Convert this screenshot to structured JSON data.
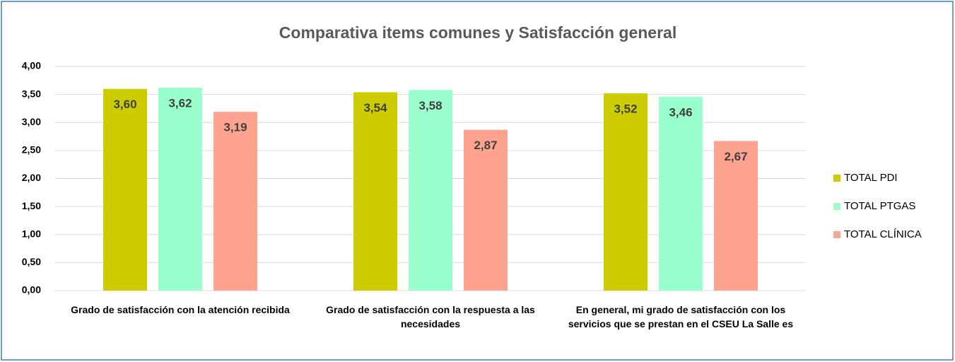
{
  "chart_data": {
    "type": "bar",
    "title": "Comparativa items comunes y Satisfacción general",
    "categories": [
      "Grado de satisfacción con la atención recibida",
      "Grado de satisfacción con la respuesta a las necesidades",
      "En general, mi grado de satisfacción con los servicios que se prestan en el CSEU La Salle es"
    ],
    "series": [
      {
        "name": "TOTAL PDI",
        "color": "#cccc00",
        "values": [
          3.6,
          3.54,
          3.52
        ],
        "value_labels": [
          "3,60",
          "3,54",
          "3,52"
        ]
      },
      {
        "name": "TOTAL PTGAS",
        "color": "#99ffcc",
        "values": [
          3.62,
          3.58,
          3.46
        ],
        "value_labels": [
          "3,62",
          "3,58",
          "3,46"
        ]
      },
      {
        "name": "TOTAL CLÍNICA",
        "color": "#ffa391",
        "values": [
          3.19,
          2.87,
          2.67
        ],
        "value_labels": [
          "3,19",
          "2,87",
          "2,67"
        ]
      }
    ],
    "ylim": [
      0,
      4
    ],
    "yticks": [
      {
        "value": 0,
        "label": "0,00"
      },
      {
        "value": 0.5,
        "label": "0,50"
      },
      {
        "value": 1,
        "label": "1,00"
      },
      {
        "value": 1.5,
        "label": "1,50"
      },
      {
        "value": 2,
        "label": "2,00"
      },
      {
        "value": 2.5,
        "label": "2,50"
      },
      {
        "value": 3,
        "label": "3,00"
      },
      {
        "value": 3.5,
        "label": "3,50"
      },
      {
        "value": 4,
        "label": "4,00"
      }
    ],
    "grid": true,
    "legend": "right"
  }
}
